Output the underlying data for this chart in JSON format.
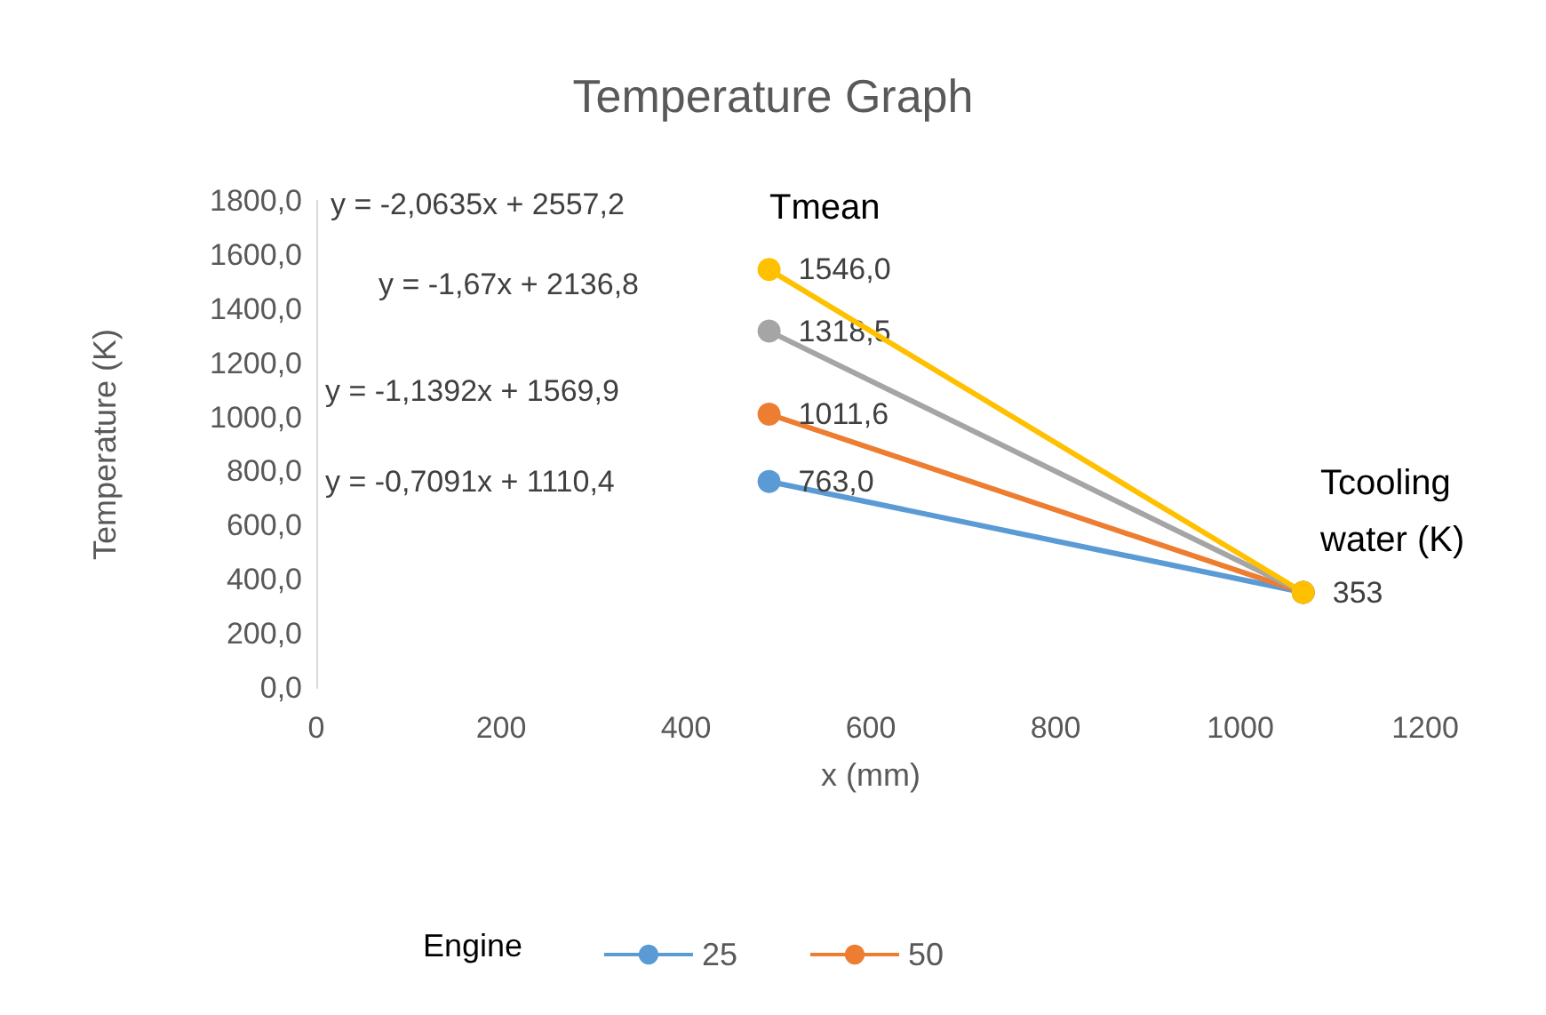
{
  "chart_data": {
    "type": "line",
    "title": "Temperature Graph",
    "xlabel": "x (mm)",
    "ylabel": "Temperature (K)",
    "legend_title": "Engine",
    "x": [
      490,
      1068
    ],
    "series": [
      {
        "name": "25",
        "color": "#5b9bd5",
        "values": [
          763.0,
          353
        ],
        "value_labels": [
          "763,0",
          null
        ]
      },
      {
        "name": "50",
        "color": "#ed7d31",
        "values": [
          1011.6,
          353
        ],
        "value_labels": [
          "1011,6",
          null
        ]
      },
      {
        "color": "#a5a5a5",
        "values": [
          1318.5,
          353
        ],
        "value_labels": [
          "1318,5",
          null
        ]
      },
      {
        "color": "#ffc000",
        "values": [
          1546.0,
          353
        ],
        "value_labels": [
          "1546,0",
          "353"
        ]
      }
    ],
    "xlim": [
      0,
      1200
    ],
    "xticks": [
      0,
      200,
      400,
      600,
      800,
      1000,
      1200
    ],
    "ylim": [
      0,
      1800
    ],
    "yticks": [
      {
        "value": 0,
        "label": "0,0"
      },
      {
        "value": 200,
        "label": "200,0"
      },
      {
        "value": 400,
        "label": "400,0"
      },
      {
        "value": 600,
        "label": "600,0"
      },
      {
        "value": 800,
        "label": "800,0"
      },
      {
        "value": 1000,
        "label": "1000,0"
      },
      {
        "value": 1200,
        "label": "1200,0"
      },
      {
        "value": 1400,
        "label": "1400,0"
      },
      {
        "value": 1600,
        "label": "1600,0"
      },
      {
        "value": 1800,
        "label": "1800,0"
      }
    ],
    "annotations": [
      "y = -2,0635x + 2557,2",
      "y = -1,67x + 2136,8",
      "y = -1,1392x + 1569,9",
      "y = -0,7091x + 1110,4",
      "Tmean",
      "Tcooling\nwater (K)"
    ],
    "grid": false,
    "legend": "bottom",
    "marker": "circle",
    "line_style": "solid"
  }
}
